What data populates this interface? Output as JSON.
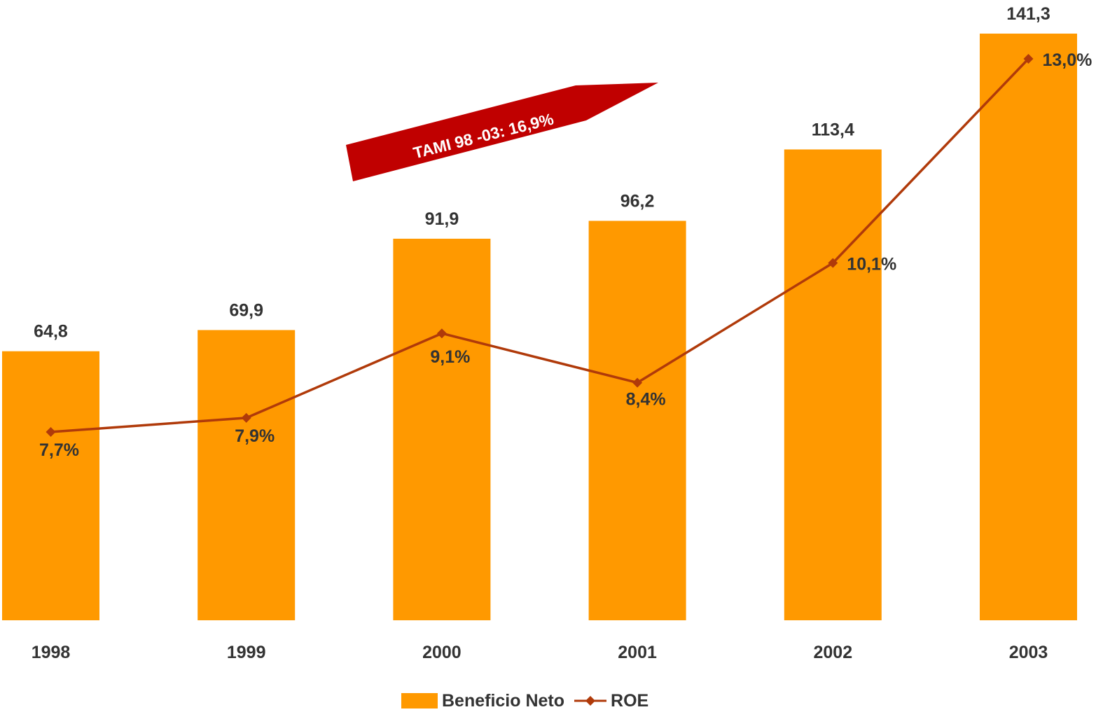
{
  "chart_data": {
    "type": "bar",
    "categories": [
      "1998",
      "1999",
      "2000",
      "2001",
      "2002",
      "2003"
    ],
    "series": [
      {
        "name": "Beneficio Neto",
        "type": "bar",
        "values": [
          64.8,
          69.9,
          91.9,
          96.2,
          113.4,
          141.3
        ],
        "value_labels": [
          "64,8",
          "69,9",
          "91,9",
          "96,2",
          "113,4",
          "141,3"
        ],
        "color": "#FF9900"
      },
      {
        "name": "ROE",
        "type": "line",
        "values": [
          7.7,
          7.9,
          9.1,
          8.4,
          10.1,
          13.0
        ],
        "value_labels": [
          "7,7%",
          "7,9%",
          "9,1%",
          "8,4%",
          "10,1%",
          "13,0%"
        ],
        "color": "#B03A0A"
      }
    ],
    "annotation": {
      "text": "TAMI 98 -03: 16,9%",
      "color": "#C00000"
    },
    "legend": "bottom",
    "grid": false
  }
}
